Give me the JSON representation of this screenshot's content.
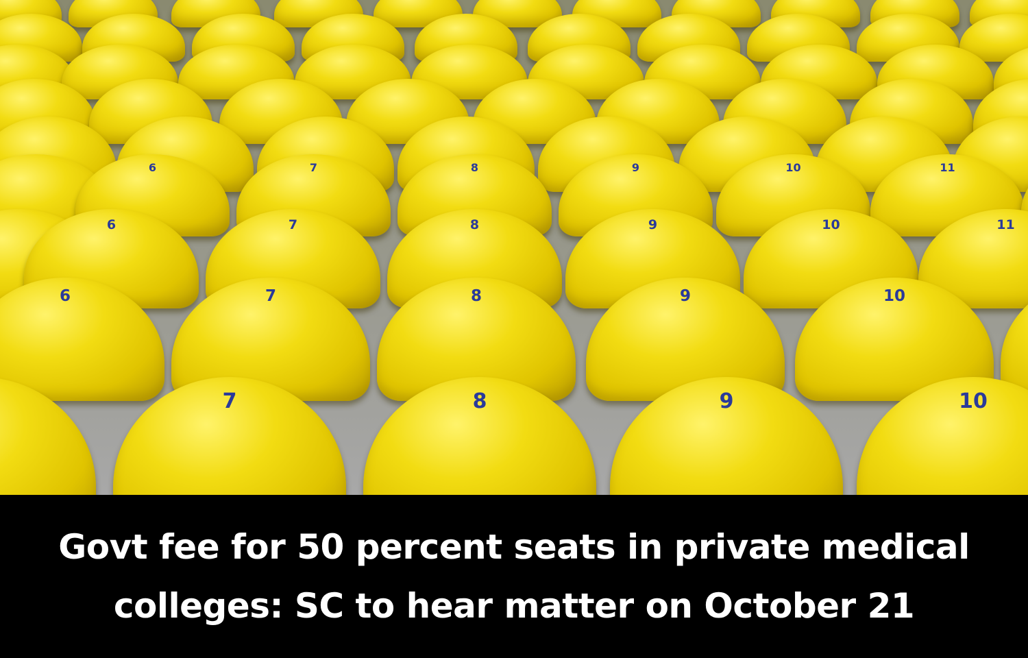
{
  "photo": {
    "subject": "rows of yellow stadium seats",
    "seat_color": "#f2dc12",
    "number_color": "#2a3a9a",
    "seat_numbers": {
      "row_front": [
        "",
        "7",
        "8",
        "9",
        "10"
      ],
      "row_2": [
        "6",
        "7",
        "8",
        "9",
        "10"
      ],
      "row_3": [
        "6",
        "7",
        "8",
        "9",
        "10",
        "11"
      ],
      "row_4": [
        "6",
        "7",
        "8",
        "9",
        "10",
        "11"
      ]
    }
  },
  "caption": {
    "line1": "Govt fee for 50 percent seats in private medical",
    "line2": "colleges: SC to hear matter on October 21"
  }
}
